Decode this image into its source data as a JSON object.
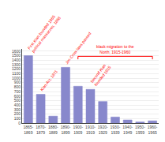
{
  "chart_data": {
    "type": "bar",
    "categories": [
      "1865-\n1869",
      "1870-\n1879",
      "1880-\n1889",
      "1890-\n1899",
      "1900-\n1909",
      "1910-\n1919",
      "1920-\n1929",
      "1930-\n1939",
      "1940-\n1949",
      "1950-\n1959",
      "1960-\n1965"
    ],
    "values": [
      1500,
      640,
      155,
      1240,
      820,
      750,
      480,
      135,
      70,
      25,
      50
    ],
    "color": "#8888cc",
    "ylim": [
      0,
      1650
    ],
    "yticks": [
      0,
      100,
      200,
      300,
      400,
      500,
      600,
      700,
      800,
      900,
      1000,
      1100,
      1200,
      1300,
      1400,
      1500,
      1600
    ],
    "grid": true,
    "annotations": [
      {
        "text": "First Klan founded 1865\npolitical massacres, 1868",
        "x": "1865-\n1869",
        "color": "red"
      },
      {
        "text": "Klan Act, 1871",
        "x": "1870-\n1879",
        "color": "red"
      },
      {
        "text": "Jim Crow laws passed",
        "x": "1890-\n1899",
        "color": "red"
      },
      {
        "text": "Second Klan\nfounded 1915",
        "x": "1910-\n1919",
        "color": "red"
      },
      {
        "text": "black migration to the\nNorth, 1915-1960",
        "x": [
          "1900-\n1909",
          "1960-\n1965"
        ],
        "color": "red"
      }
    ]
  }
}
